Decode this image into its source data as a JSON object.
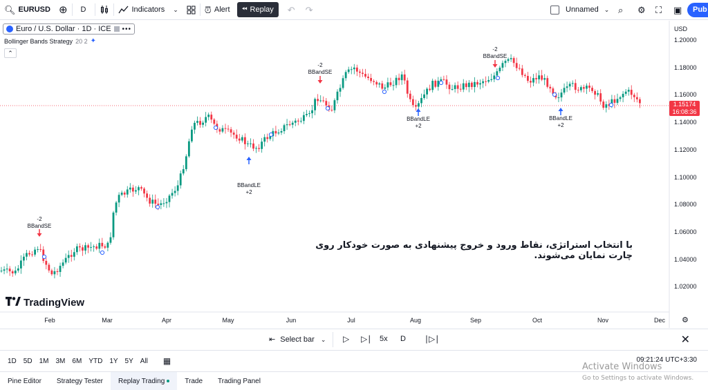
{
  "toolbar": {
    "symbol": "EURUSD",
    "interval": "D",
    "indicators": "Indicators",
    "alert": "Alert",
    "replay": "Replay",
    "layout_name": "Unnamed",
    "publish": "Pub"
  },
  "legend": {
    "title": "Euro / U.S. Dollar · 1D · ICE",
    "strategy": "Bollinger Bands Strategy",
    "strategy_params": "20 2"
  },
  "axis": {
    "currency": "USD",
    "y_ticks": [
      "1.20000",
      "1.18000",
      "1.16000",
      "1.14000",
      "1.12000",
      "1.10000",
      "1.08000",
      "1.06000",
      "1.04000",
      "1.02000"
    ],
    "x_ticks": [
      "Feb",
      "Mar",
      "Apr",
      "May",
      "Jun",
      "Jul",
      "Aug",
      "Sep",
      "Oct",
      "Nov",
      "Dec"
    ]
  },
  "price_tag": {
    "price": "1.15174",
    "countdown": "16:08:36"
  },
  "signals": [
    {
      "qty": "-2",
      "label": "BBandSE"
    },
    {
      "qty": "+2",
      "label": "BBandLE"
    },
    {
      "qty": "-2",
      "label": "BBandSE"
    },
    {
      "qty": "+2",
      "label": "BBandLE"
    },
    {
      "qty": "-2",
      "label": "BBandSE"
    },
    {
      "qty": "+2",
      "label": "BBandLE"
    }
  ],
  "overlay_text": "با انتخاب استراتژی، نقاط ورود و خروج پیشنهادی به صورت خودکار روی چارت نمایان می‌شوند.",
  "logo": "TradingView",
  "replay_bar": {
    "select_bar": "Select bar",
    "speed": "5x",
    "interval": "D"
  },
  "timeframes": [
    "1D",
    "5D",
    "1M",
    "3M",
    "6M",
    "YTD",
    "1Y",
    "5Y",
    "All"
  ],
  "clock": "09:21:24 UTC+3:30",
  "bottom_tabs": [
    "Pine Editor",
    "Strategy Tester",
    "Replay Trading",
    "Trade",
    "Trading Panel"
  ],
  "watermark": {
    "line1": "Activate Windows",
    "line2": "Go to Settings to activate Windows."
  },
  "colors": {
    "up": "#089981",
    "down": "#f23645",
    "accent": "#2962ff",
    "long_signal": "#2962ff",
    "short_signal": "#f23645"
  }
}
